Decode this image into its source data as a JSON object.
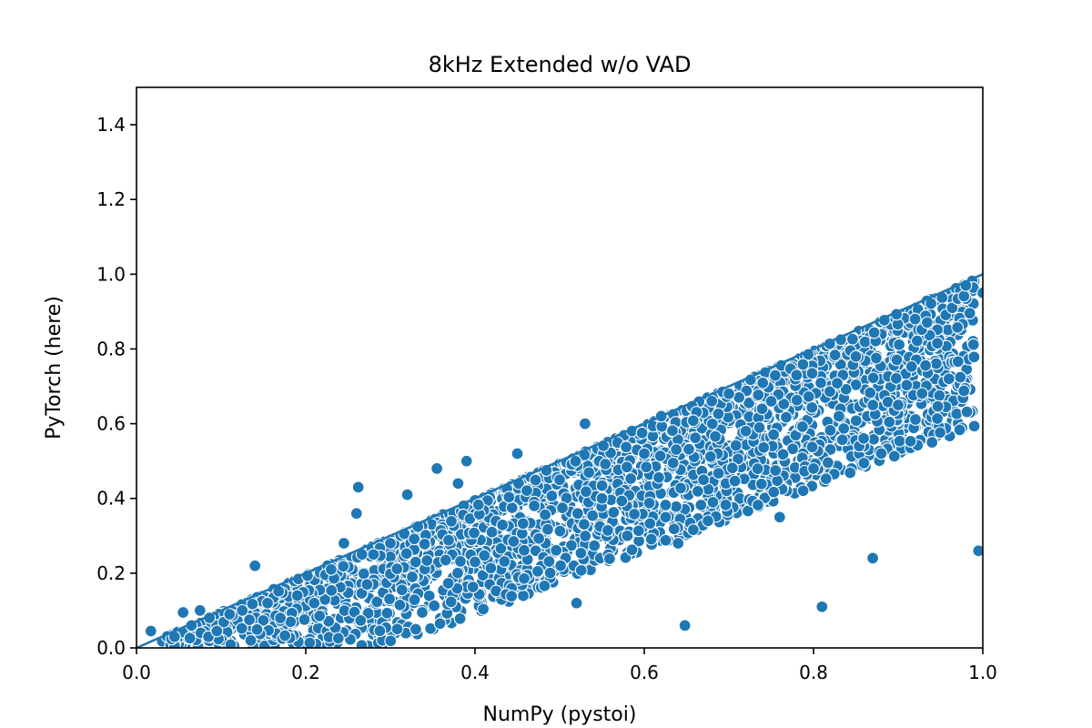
{
  "chart_data": {
    "type": "scatter",
    "title": "8kHz Extended w/o VAD",
    "xlabel": "NumPy (pystoi)",
    "ylabel": "PyTorch (here)",
    "xlim": [
      0.0,
      1.0
    ],
    "ylim": [
      0.0,
      1.5
    ],
    "xticks": [
      "0.0",
      "0.2",
      "0.4",
      "0.6",
      "0.8",
      "1.0"
    ],
    "yticks": [
      "0.0",
      "0.2",
      "0.4",
      "0.6",
      "0.8",
      "1.0",
      "1.2",
      "1.4"
    ],
    "reference_line": {
      "name": "y = x",
      "x": [
        0.0,
        1.0
      ],
      "y": [
        0.0,
        1.0
      ]
    },
    "series": [
      {
        "name": "samples",
        "color": "#1f77b4",
        "edgecolor": "#ffffff",
        "sampled_points": {
          "x": [
            0.017,
            0.045,
            0.055,
            0.065,
            0.075,
            0.085,
            0.095,
            0.11,
            0.125,
            0.135,
            0.14,
            0.155,
            0.17,
            0.19,
            0.21,
            0.23,
            0.245,
            0.26,
            0.262,
            0.28,
            0.3,
            0.32,
            0.33,
            0.355,
            0.38,
            0.39,
            0.4,
            0.42,
            0.45,
            0.47,
            0.5,
            0.52,
            0.53,
            0.55,
            0.58,
            0.6,
            0.62,
            0.64,
            0.648,
            0.67,
            0.7,
            0.72,
            0.75,
            0.76,
            0.78,
            0.8,
            0.81,
            0.83,
            0.85,
            0.87,
            0.9,
            0.92,
            0.94,
            0.96,
            0.98,
            0.995,
            1.0
          ],
          "y": [
            0.045,
            0.03,
            0.095,
            0.06,
            0.1,
            0.03,
            0.045,
            0.09,
            0.1,
            0.02,
            0.22,
            0.12,
            0.08,
            0.14,
            0.12,
            0.21,
            0.28,
            0.36,
            0.43,
            0.25,
            0.28,
            0.41,
            0.05,
            0.48,
            0.44,
            0.5,
            0.23,
            0.31,
            0.52,
            0.38,
            0.45,
            0.12,
            0.6,
            0.4,
            0.3,
            0.52,
            0.62,
            0.28,
            0.06,
            0.45,
            0.68,
            0.58,
            0.66,
            0.35,
            0.73,
            0.48,
            0.11,
            0.62,
            0.78,
            0.24,
            0.65,
            0.88,
            0.55,
            0.72,
            0.97,
            0.26,
            0.95
          ]
        }
      }
    ]
  }
}
